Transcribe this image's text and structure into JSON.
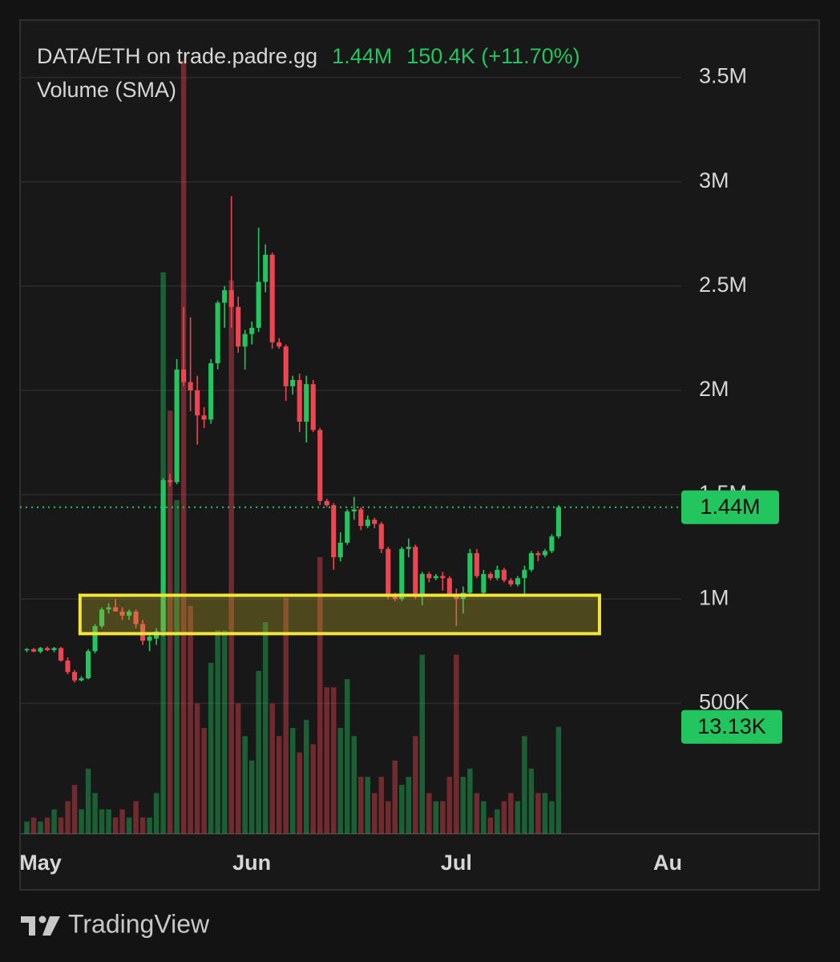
{
  "chart_data": {
    "type": "candlestick",
    "title": "DATA/ETH on trade.padre.gg",
    "header_close": "1.44M",
    "header_change": "150.4K (+11.70%)",
    "subtitle": "Volume (SMA)",
    "last_price_label": "1.44M",
    "last_volume_label": "13.13K",
    "source": "TradingView",
    "up_color": "#22c55e",
    "down_color": "#ef4451",
    "open": [
      755000,
      760000,
      748000,
      765000,
      755000,
      765000,
      705000,
      650000,
      610000,
      620000,
      750000,
      870000,
      950000,
      960000,
      940000,
      920000,
      940000,
      880000,
      800000,
      810000,
      845000,
      1570000,
      1560000,
      2100000,
      2040000,
      2000000,
      1880000,
      1860000,
      2130000,
      2420000,
      2480000,
      2400000,
      2210000,
      2270000,
      2300000,
      2520000,
      2650000,
      2230000,
      2210000,
      2020000,
      2050000,
      1850000,
      2030000,
      1810000,
      1470000,
      1450000,
      1200000,
      1270000,
      1420000,
      1430000,
      1350000,
      1380000,
      1360000,
      1240000,
      1010000,
      1000000,
      1240000,
      1250000,
      1010000,
      1120000,
      1100000,
      1110000,
      1100000,
      1020000,
      1000000,
      1030000,
      1220000,
      1030000,
      1120000,
      1100000,
      1140000,
      1090000,
      1070000,
      1100000,
      1140000,
      1220000,
      1210000,
      1230000,
      1300000
    ],
    "high": [
      765000,
      765000,
      770000,
      772000,
      770000,
      770000,
      720000,
      660000,
      630000,
      760000,
      880000,
      960000,
      980000,
      1000000,
      960000,
      950000,
      950000,
      900000,
      830000,
      860000,
      1580000,
      1600000,
      2150000,
      2400000,
      2350000,
      2070000,
      1920000,
      2150000,
      2430000,
      2500000,
      2930000,
      2450000,
      2290000,
      2330000,
      2780000,
      2700000,
      2660000,
      2250000,
      2220000,
      2070000,
      2080000,
      2070000,
      2050000,
      1820000,
      1480000,
      1460000,
      1320000,
      1430000,
      1490000,
      1440000,
      1400000,
      1390000,
      1370000,
      1250000,
      1030000,
      1250000,
      1290000,
      1260000,
      1130000,
      1130000,
      1120000,
      1130000,
      1110000,
      1050000,
      1060000,
      1240000,
      1240000,
      1140000,
      1130000,
      1160000,
      1150000,
      1100000,
      1110000,
      1160000,
      1230000,
      1230000,
      1240000,
      1310000,
      1450000
    ],
    "low": [
      745000,
      745000,
      740000,
      750000,
      745000,
      700000,
      640000,
      600000,
      605000,
      615000,
      740000,
      860000,
      930000,
      940000,
      900000,
      900000,
      860000,
      780000,
      750000,
      780000,
      820000,
      1540000,
      1550000,
      2020000,
      1900000,
      1740000,
      1820000,
      1840000,
      2100000,
      2300000,
      2300000,
      2180000,
      2100000,
      2220000,
      2280000,
      2470000,
      2200000,
      2200000,
      1950000,
      1980000,
      1800000,
      1750000,
      1800000,
      1450000,
      1440000,
      1140000,
      1180000,
      1260000,
      1380000,
      1330000,
      1340000,
      1340000,
      1220000,
      1000000,
      990000,
      990000,
      1200000,
      1000000,
      970000,
      1080000,
      1090000,
      1040000,
      1010000,
      870000,
      930000,
      1020000,
      1100000,
      1020000,
      1090000,
      1090000,
      1080000,
      1060000,
      1060000,
      1020000,
      1130000,
      1180000,
      1200000,
      1220000,
      1290000
    ],
    "close": [
      760000,
      748000,
      765000,
      755000,
      765000,
      705000,
      650000,
      610000,
      620000,
      750000,
      870000,
      950000,
      960000,
      940000,
      920000,
      940000,
      880000,
      800000,
      820000,
      845000,
      1570000,
      1560000,
      2100000,
      2040000,
      2000000,
      1880000,
      1860000,
      2130000,
      2420000,
      2480000,
      2400000,
      2210000,
      2270000,
      2300000,
      2520000,
      2650000,
      2230000,
      2210000,
      2020000,
      2050000,
      1850000,
      2030000,
      1810000,
      1470000,
      1450000,
      1200000,
      1270000,
      1420000,
      1430000,
      1350000,
      1380000,
      1360000,
      1240000,
      1010000,
      1000000,
      1240000,
      1250000,
      1010000,
      1120000,
      1100000,
      1110000,
      1100000,
      1020000,
      1000000,
      1030000,
      1220000,
      1110000,
      1120000,
      1100000,
      1140000,
      1090000,
      1070000,
      1100000,
      1140000,
      1220000,
      1210000,
      1230000,
      1300000,
      1440000
    ],
    "volume": [
      1500,
      2000,
      1500,
      2000,
      3000,
      2000,
      4000,
      6000,
      3000,
      8000,
      5000,
      3000,
      3000,
      2000,
      3000,
      2000,
      4000,
      2000,
      2000,
      5000,
      69000,
      52000,
      41000,
      95000,
      28000,
      16000,
      13000,
      21000,
      25000,
      25000,
      68000,
      16000,
      12000,
      9000,
      20000,
      26000,
      16000,
      12000,
      29000,
      13000,
      10000,
      14000,
      11000,
      34000,
      18000,
      18000,
      13000,
      19000,
      12000,
      7000,
      7000,
      5000,
      7000,
      4000,
      9000,
      6000,
      7000,
      12000,
      22000,
      5000,
      4000,
      4000,
      7000,
      22000,
      7000,
      8000,
      5000,
      4000,
      2000,
      3000,
      4000,
      5000,
      4000,
      12000,
      8000,
      5000,
      5000,
      4000,
      13130
    ],
    "xlim": [
      -1,
      96
    ],
    "xticks": [
      {
        "value": 2,
        "label": "May"
      },
      {
        "value": 33,
        "label": "Jun"
      },
      {
        "value": 63,
        "label": "Jul"
      },
      {
        "value": 94,
        "label": "Au"
      }
    ],
    "ylim": [
      -125000,
      3775000
    ],
    "yticks": [
      {
        "value": 500000,
        "label": "500K"
      },
      {
        "value": 1000000,
        "label": "1M"
      },
      {
        "value": 1500000,
        "label": "1.5M"
      },
      {
        "value": 2000000,
        "label": "2M"
      },
      {
        "value": 2500000,
        "label": "2.5M"
      },
      {
        "value": 3000000,
        "label": "3M"
      },
      {
        "value": 3500000,
        "label": "3.5M"
      }
    ],
    "volume_ylim": [
      0,
      100000
    ],
    "grid": true,
    "highlight_zone": {
      "from": 7.8,
      "to": 84,
      "low": 834000,
      "high": 1018000
    }
  }
}
